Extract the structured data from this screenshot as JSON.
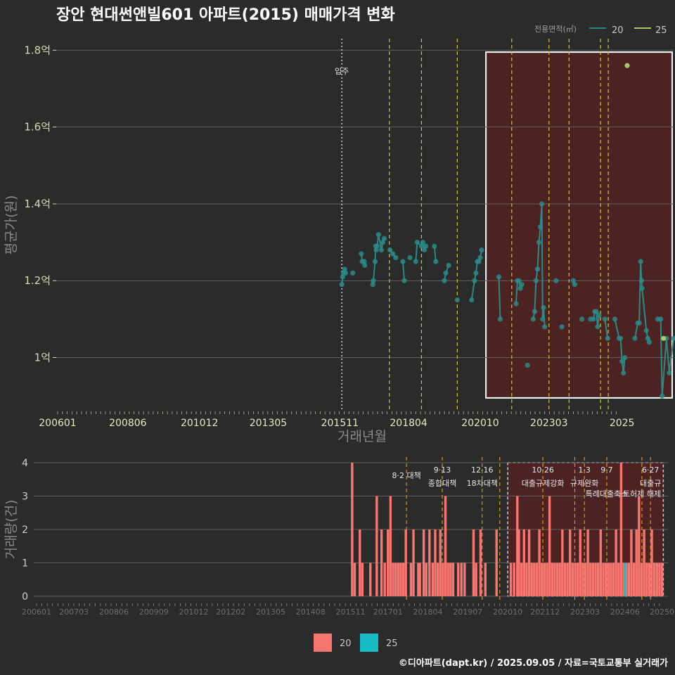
{
  "title": "장안 현대썬앤빌601 아파트(2015) 매매가격 변화",
  "footer": "©디아파트(dapt.kr) / 2025.09.05 / 자료=국토교통부 실거래가",
  "colors": {
    "background": "#2b2b2b",
    "grid": "#5e5e5e",
    "series_20_price": "#2a8a87",
    "series_25_price": "#a4c964",
    "series_20_volume": "#f87670",
    "series_25_volume": "#16bcc4",
    "policy_line": "#d4c62a",
    "highlight_fill": "#4d2222",
    "highlight_stroke": "#ffffff"
  },
  "chart_data": [
    {
      "type": "line",
      "xlabel": "거래년월",
      "ylabel": "평균가(원)",
      "ylim": [
        0.86,
        1.83
      ],
      "y_ticks": [
        {
          "value": 1.0,
          "label": "1억"
        },
        {
          "value": 1.2,
          "label": "1.2억"
        },
        {
          "value": 1.4,
          "label": "1.4억"
        },
        {
          "value": 1.6,
          "label": "1.6억"
        },
        {
          "value": 1.8,
          "label": "1.8억"
        }
      ],
      "x_ticks": [
        "200601",
        "200806",
        "201012",
        "201305",
        "201511",
        "201804",
        "202010",
        "202303",
        "2025"
      ],
      "legend": {
        "title": "전용면적(㎡)",
        "position": "top-right",
        "entries": [
          "20",
          "25"
        ]
      },
      "annotations": [
        {
          "text": "입주",
          "x": "2015.11"
        }
      ],
      "series": [
        {
          "name": "20",
          "points": [
            [
              2015.92,
              1.19
            ],
            [
              2015.95,
              1.21
            ],
            [
              2015.98,
              1.22
            ],
            [
              2016.02,
              1.23
            ],
            [
              2016.05,
              1.22
            ],
            [
              2016.3,
              1.22
            ],
            [
              2016.6,
              1.27
            ],
            [
              2016.63,
              1.25
            ],
            [
              2016.7,
              1.25
            ],
            [
              2016.72,
              1.24
            ],
            [
              2017.0,
              1.19
            ],
            [
              2017.02,
              1.2
            ],
            [
              2017.08,
              1.25
            ],
            [
              2017.1,
              1.29
            ],
            [
              2017.12,
              1.28
            ],
            [
              2017.15,
              1.29
            ],
            [
              2017.2,
              1.32
            ],
            [
              2017.3,
              1.28
            ],
            [
              2017.35,
              1.3
            ],
            [
              2017.4,
              1.31
            ],
            [
              2017.6,
              1.28
            ],
            [
              2017.7,
              1.27
            ],
            [
              2017.8,
              1.26
            ],
            [
              2018.05,
              1.25
            ],
            [
              2018.1,
              1.2
            ],
            [
              2018.3,
              1.26
            ],
            [
              2018.5,
              1.25
            ],
            [
              2018.55,
              1.3
            ],
            [
              2018.7,
              1.29
            ],
            [
              2018.75,
              1.3
            ],
            [
              2018.8,
              1.28
            ],
            [
              2018.85,
              1.29
            ],
            [
              2019.15,
              1.29
            ],
            [
              2019.2,
              1.25
            ],
            [
              2019.5,
              1.2
            ],
            [
              2019.55,
              1.22
            ],
            [
              2019.65,
              1.24
            ],
            [
              2019.95,
              1.15
            ],
            [
              2020.45,
              1.15
            ],
            [
              2020.55,
              1.2
            ],
            [
              2020.6,
              1.22
            ],
            [
              2020.65,
              1.25
            ],
            [
              2020.7,
              1.25
            ],
            [
              2020.75,
              1.26
            ],
            [
              2020.8,
              1.28
            ],
            [
              2021.4,
              1.21
            ],
            [
              2021.45,
              1.1
            ],
            [
              2022.0,
              1.14
            ],
            [
              2022.05,
              1.2
            ],
            [
              2022.1,
              1.2
            ],
            [
              2022.15,
              1.18
            ],
            [
              2022.2,
              1.19
            ],
            [
              2022.4,
              0.98
            ],
            [
              2022.6,
              1.1
            ],
            [
              2022.65,
              1.12
            ],
            [
              2022.7,
              1.2
            ],
            [
              2022.75,
              1.23
            ],
            [
              2022.8,
              1.3
            ],
            [
              2022.85,
              1.34
            ],
            [
              2022.9,
              1.4
            ],
            [
              2022.93,
              1.1
            ],
            [
              2022.96,
              1.13
            ],
            [
              2023.0,
              1.08
            ],
            [
              2023.4,
              1.2
            ],
            [
              2023.6,
              1.08
            ],
            [
              2024.0,
              1.2
            ],
            [
              2024.05,
              1.19
            ],
            [
              2024.3,
              1.1
            ],
            [
              2024.6,
              1.1
            ],
            [
              2024.7,
              1.1
            ],
            [
              2024.75,
              1.12
            ],
            [
              2024.8,
              1.12
            ],
            [
              2024.85,
              1.08
            ],
            [
              2024.9,
              1.11
            ],
            [
              2025.1,
              1.1
            ],
            [
              2025.2,
              1.05
            ],
            [
              2025.45,
              1.1
            ],
            [
              2025.6,
              1.05
            ],
            [
              2025.65,
              1.05
            ],
            [
              2025.7,
              0.99
            ],
            [
              2025.75,
              0.96
            ],
            [
              2025.8,
              1.0
            ],
            [
              2026.15,
              1.05
            ],
            [
              2026.25,
              1.09
            ],
            [
              2026.3,
              1.09
            ],
            [
              2026.35,
              1.25
            ],
            [
              2026.38,
              1.2
            ],
            [
              2026.4,
              1.18
            ],
            [
              2026.55,
              1.07
            ],
            [
              2026.6,
              1.05
            ],
            [
              2026.65,
              1.04
            ],
            [
              2026.95,
              1.1
            ],
            [
              2027.05,
              1.1
            ],
            [
              2027.1,
              0.9
            ],
            [
              2027.25,
              1.05
            ],
            [
              2027.35,
              0.96
            ],
            [
              2027.5,
              1.05
            ]
          ]
        },
        {
          "name": "25",
          "points": [
            [
              2025.88,
              1.76
            ],
            [
              2027.15,
              1.05
            ]
          ]
        }
      ],
      "policy_lines": [
        2017.58,
        2018.7,
        2019.95,
        2021.85,
        2023.15,
        2023.85,
        2024.95,
        2025.22
      ],
      "entry_line": 2015.92,
      "highlight_range": {
        "x": [
          2020.95,
          2027.45
        ],
        "y": [
          0.895,
          1.795
        ]
      }
    },
    {
      "type": "bar",
      "ylabel": "거래량(건)",
      "ylim": [
        0,
        4
      ],
      "y_ticks": [
        0,
        1,
        2,
        3,
        4
      ],
      "x_ticks": [
        "200601",
        "200703",
        "200806",
        "200909",
        "201012",
        "201202",
        "201305",
        "201408",
        "201511",
        "201701",
        "201804",
        "201907",
        "202010",
        "202112",
        "202303",
        "202406",
        "20250"
      ],
      "legend": {
        "position": "bottom",
        "entries": [
          "20",
          "25"
        ]
      },
      "policy_labels": [
        {
          "x": 2017.58,
          "lines": [
            "8·2 대책"
          ]
        },
        {
          "x": 2018.7,
          "lines": [
            "9·13",
            "종합대책"
          ]
        },
        {
          "x": 2019.95,
          "lines": [
            "12·16",
            "18차대책"
          ]
        },
        {
          "x": 2021.85,
          "lines": [
            "10·26",
            "대출규제강화"
          ]
        },
        {
          "x": 2023.15,
          "lines": [
            "1·3",
            "규제완화"
          ]
        },
        {
          "x": 2023.85,
          "lines": [
            "9·7",
            "특례대출축소"
          ]
        },
        {
          "x": 2024.95,
          "lines": [
            "",
            "토허제 해제"
          ]
        },
        {
          "x": 2025.22,
          "lines": [
            "6·27",
            "대출규"
          ]
        }
      ],
      "policy_lines": [
        2017.58,
        2018.7,
        2019.95,
        2020.5,
        2021.85,
        2022.85,
        2023.15,
        2023.85,
        2024.95,
        2025.22
      ],
      "highlight_range": {
        "x": [
          2020.75,
          2025.62
        ],
        "y": [
          0,
          4
        ]
      },
      "series": [
        {
          "name": "20",
          "bars": [
            [
              2015.88,
              4
            ],
            [
              2015.96,
              1
            ],
            [
              2016.12,
              2
            ],
            [
              2016.2,
              1
            ],
            [
              2016.45,
              1
            ],
            [
              2016.65,
              3
            ],
            [
              2016.8,
              2
            ],
            [
              2016.9,
              1
            ],
            [
              2017.0,
              2
            ],
            [
              2017.08,
              3
            ],
            [
              2017.16,
              1
            ],
            [
              2017.24,
              1
            ],
            [
              2017.32,
              1
            ],
            [
              2017.4,
              1
            ],
            [
              2017.48,
              1
            ],
            [
              2017.56,
              2
            ],
            [
              2017.72,
              1
            ],
            [
              2017.8,
              2
            ],
            [
              2017.95,
              1
            ],
            [
              2018.0,
              1
            ],
            [
              2018.12,
              2
            ],
            [
              2018.2,
              1
            ],
            [
              2018.3,
              2
            ],
            [
              2018.4,
              1
            ],
            [
              2018.48,
              2
            ],
            [
              2018.56,
              1
            ],
            [
              2018.64,
              2
            ],
            [
              2018.72,
              1
            ],
            [
              2018.8,
              3
            ],
            [
              2018.88,
              1
            ],
            [
              2018.96,
              1
            ],
            [
              2019.04,
              1
            ],
            [
              2019.2,
              1
            ],
            [
              2019.3,
              1
            ],
            [
              2019.4,
              1
            ],
            [
              2019.68,
              2
            ],
            [
              2019.76,
              1
            ],
            [
              2019.9,
              2
            ],
            [
              2020.05,
              1
            ],
            [
              2020.4,
              2
            ],
            [
              2020.85,
              1
            ],
            [
              2020.95,
              1
            ],
            [
              2021.05,
              3
            ],
            [
              2021.1,
              2
            ],
            [
              2021.18,
              1
            ],
            [
              2021.26,
              2
            ],
            [
              2021.34,
              1
            ],
            [
              2021.42,
              2
            ],
            [
              2021.5,
              1
            ],
            [
              2021.58,
              1
            ],
            [
              2021.66,
              1
            ],
            [
              2021.74,
              2
            ],
            [
              2021.82,
              1
            ],
            [
              2021.9,
              1
            ],
            [
              2021.98,
              1
            ],
            [
              2022.06,
              3
            ],
            [
              2022.14,
              1
            ],
            [
              2022.22,
              1
            ],
            [
              2022.3,
              1
            ],
            [
              2022.38,
              1
            ],
            [
              2022.46,
              2
            ],
            [
              2022.54,
              1
            ],
            [
              2022.62,
              1
            ],
            [
              2022.7,
              2
            ],
            [
              2022.78,
              1
            ],
            [
              2022.86,
              1
            ],
            [
              2022.94,
              1
            ],
            [
              2023.02,
              2
            ],
            [
              2023.1,
              1
            ],
            [
              2023.18,
              1
            ],
            [
              2023.26,
              2
            ],
            [
              2023.34,
              1
            ],
            [
              2023.42,
              1
            ],
            [
              2023.5,
              1
            ],
            [
              2023.58,
              1
            ],
            [
              2023.66,
              2
            ],
            [
              2023.74,
              1
            ],
            [
              2023.82,
              1
            ],
            [
              2023.9,
              1
            ],
            [
              2023.98,
              1
            ],
            [
              2024.06,
              1
            ],
            [
              2024.14,
              2
            ],
            [
              2024.22,
              1
            ],
            [
              2024.3,
              4
            ],
            [
              2024.38,
              1
            ],
            [
              2024.46,
              1
            ],
            [
              2024.54,
              1
            ],
            [
              2024.62,
              2
            ],
            [
              2024.7,
              1
            ],
            [
              2024.78,
              2
            ],
            [
              2024.86,
              3
            ],
            [
              2024.94,
              1
            ],
            [
              2025.02,
              2
            ],
            [
              2025.1,
              1
            ],
            [
              2025.18,
              1
            ],
            [
              2025.26,
              2
            ],
            [
              2025.34,
              1
            ],
            [
              2025.42,
              1
            ],
            [
              2025.5,
              1
            ],
            [
              2025.58,
              1
            ]
          ]
        },
        {
          "name": "25",
          "bars": [
            [
              2024.42,
              1
            ]
          ]
        }
      ]
    }
  ]
}
